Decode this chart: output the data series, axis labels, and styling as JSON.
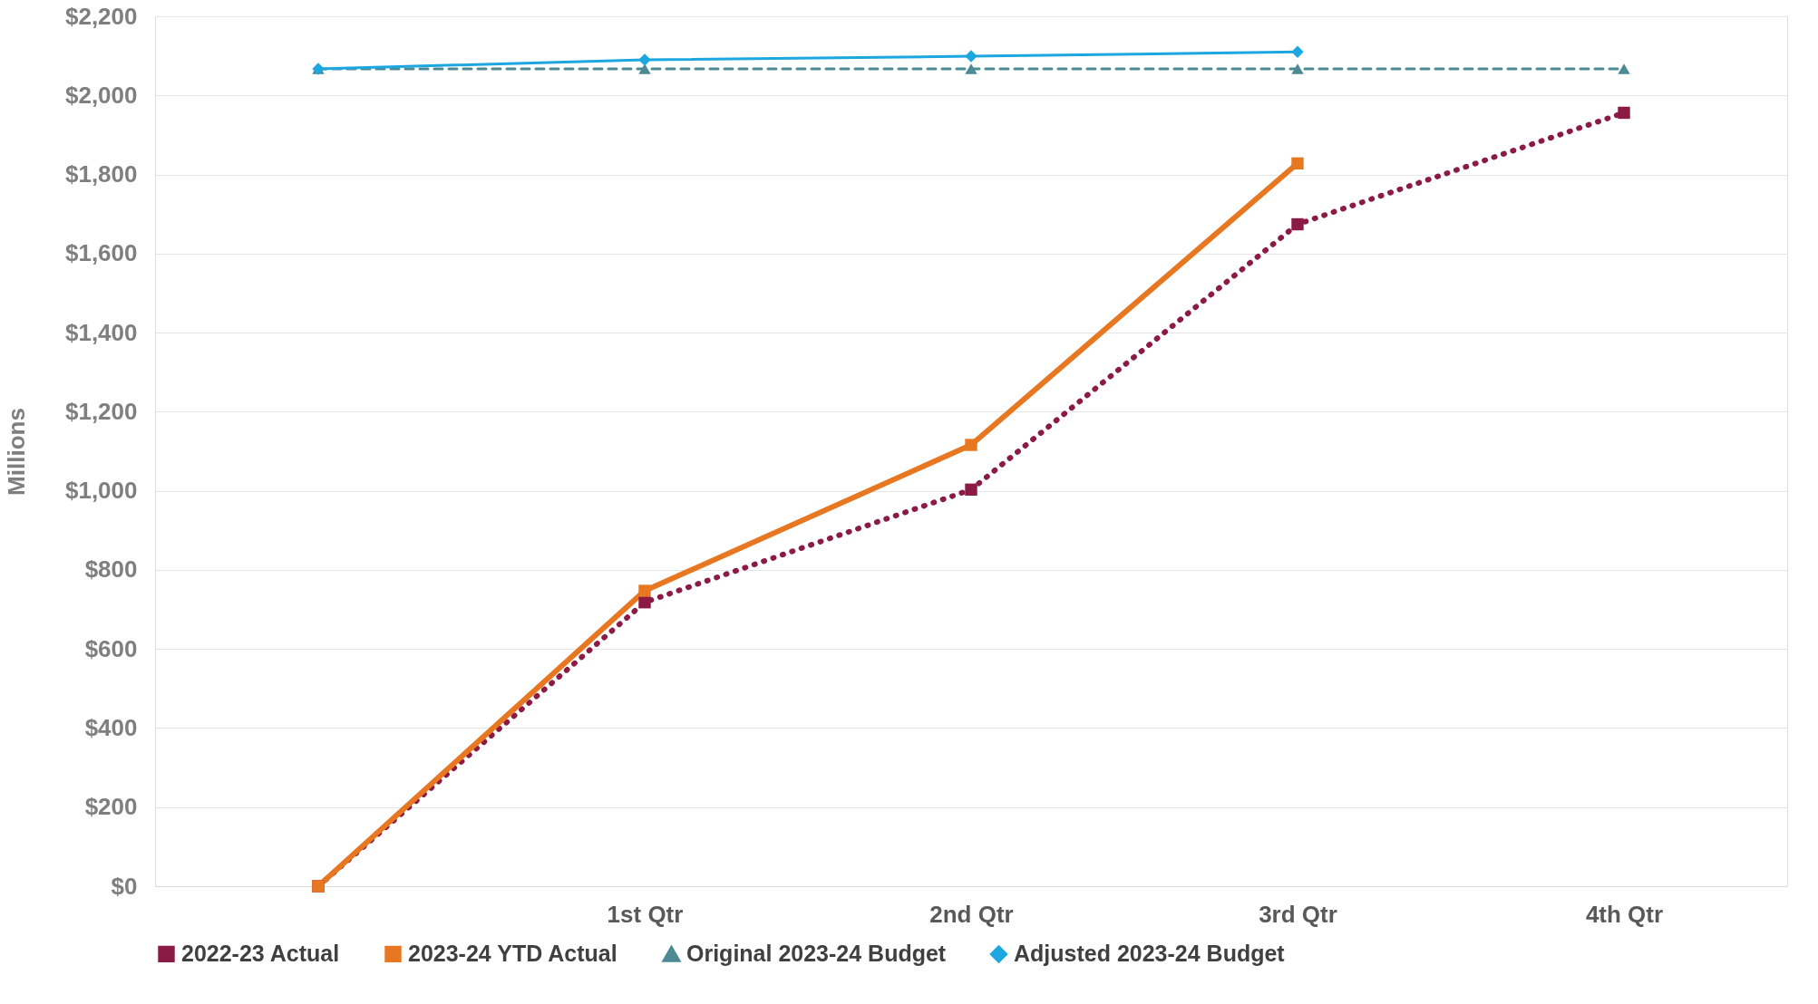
{
  "chart_data": {
    "type": "line",
    "ylabel": "Millions",
    "categories": [
      null,
      "1st Qtr",
      "2nd Qtr",
      "3rd Qtr",
      "4th Qtr"
    ],
    "series": [
      {
        "name": "2022-23 Actual",
        "color": "#8b1a45",
        "values": [
          0,
          718,
          1003,
          1674,
          1956
        ],
        "marker": "square",
        "line_style": "dotted"
      },
      {
        "name": "2023-24 YTD Actual",
        "color": "#e87722",
        "values": [
          0,
          747,
          1116,
          1828,
          null
        ],
        "marker": "square",
        "line_style": "solid"
      },
      {
        "name": "Original 2023-24 Budget",
        "color": "#4e8a94",
        "values": [
          2067,
          2067,
          2067,
          2067,
          2067
        ],
        "marker": "triangle",
        "line_style": "dashed"
      },
      {
        "name": "Adjusted 2023-24 Budget",
        "color": "#1ca7e0",
        "values": [
          2067,
          2090,
          2099,
          2110,
          null
        ],
        "marker": "diamond",
        "line_style": "solid"
      }
    ],
    "ylim": [
      0,
      2200
    ],
    "yticks": [
      {
        "value": 0,
        "label": "$0"
      },
      {
        "value": 200,
        "label": "$200"
      },
      {
        "value": 400,
        "label": "$400"
      },
      {
        "value": 600,
        "label": "$600"
      },
      {
        "value": 800,
        "label": "$800"
      },
      {
        "value": 1000,
        "label": "$1,000"
      },
      {
        "value": 1200,
        "label": "$1,200"
      },
      {
        "value": 1400,
        "label": "$1,400"
      },
      {
        "value": 1600,
        "label": "$1,600"
      },
      {
        "value": 1800,
        "label": "$1,800"
      },
      {
        "value": 2000,
        "label": "$2,000"
      },
      {
        "value": 2200,
        "label": "$2,200"
      }
    ],
    "grid": "y",
    "legend": "bottom"
  }
}
